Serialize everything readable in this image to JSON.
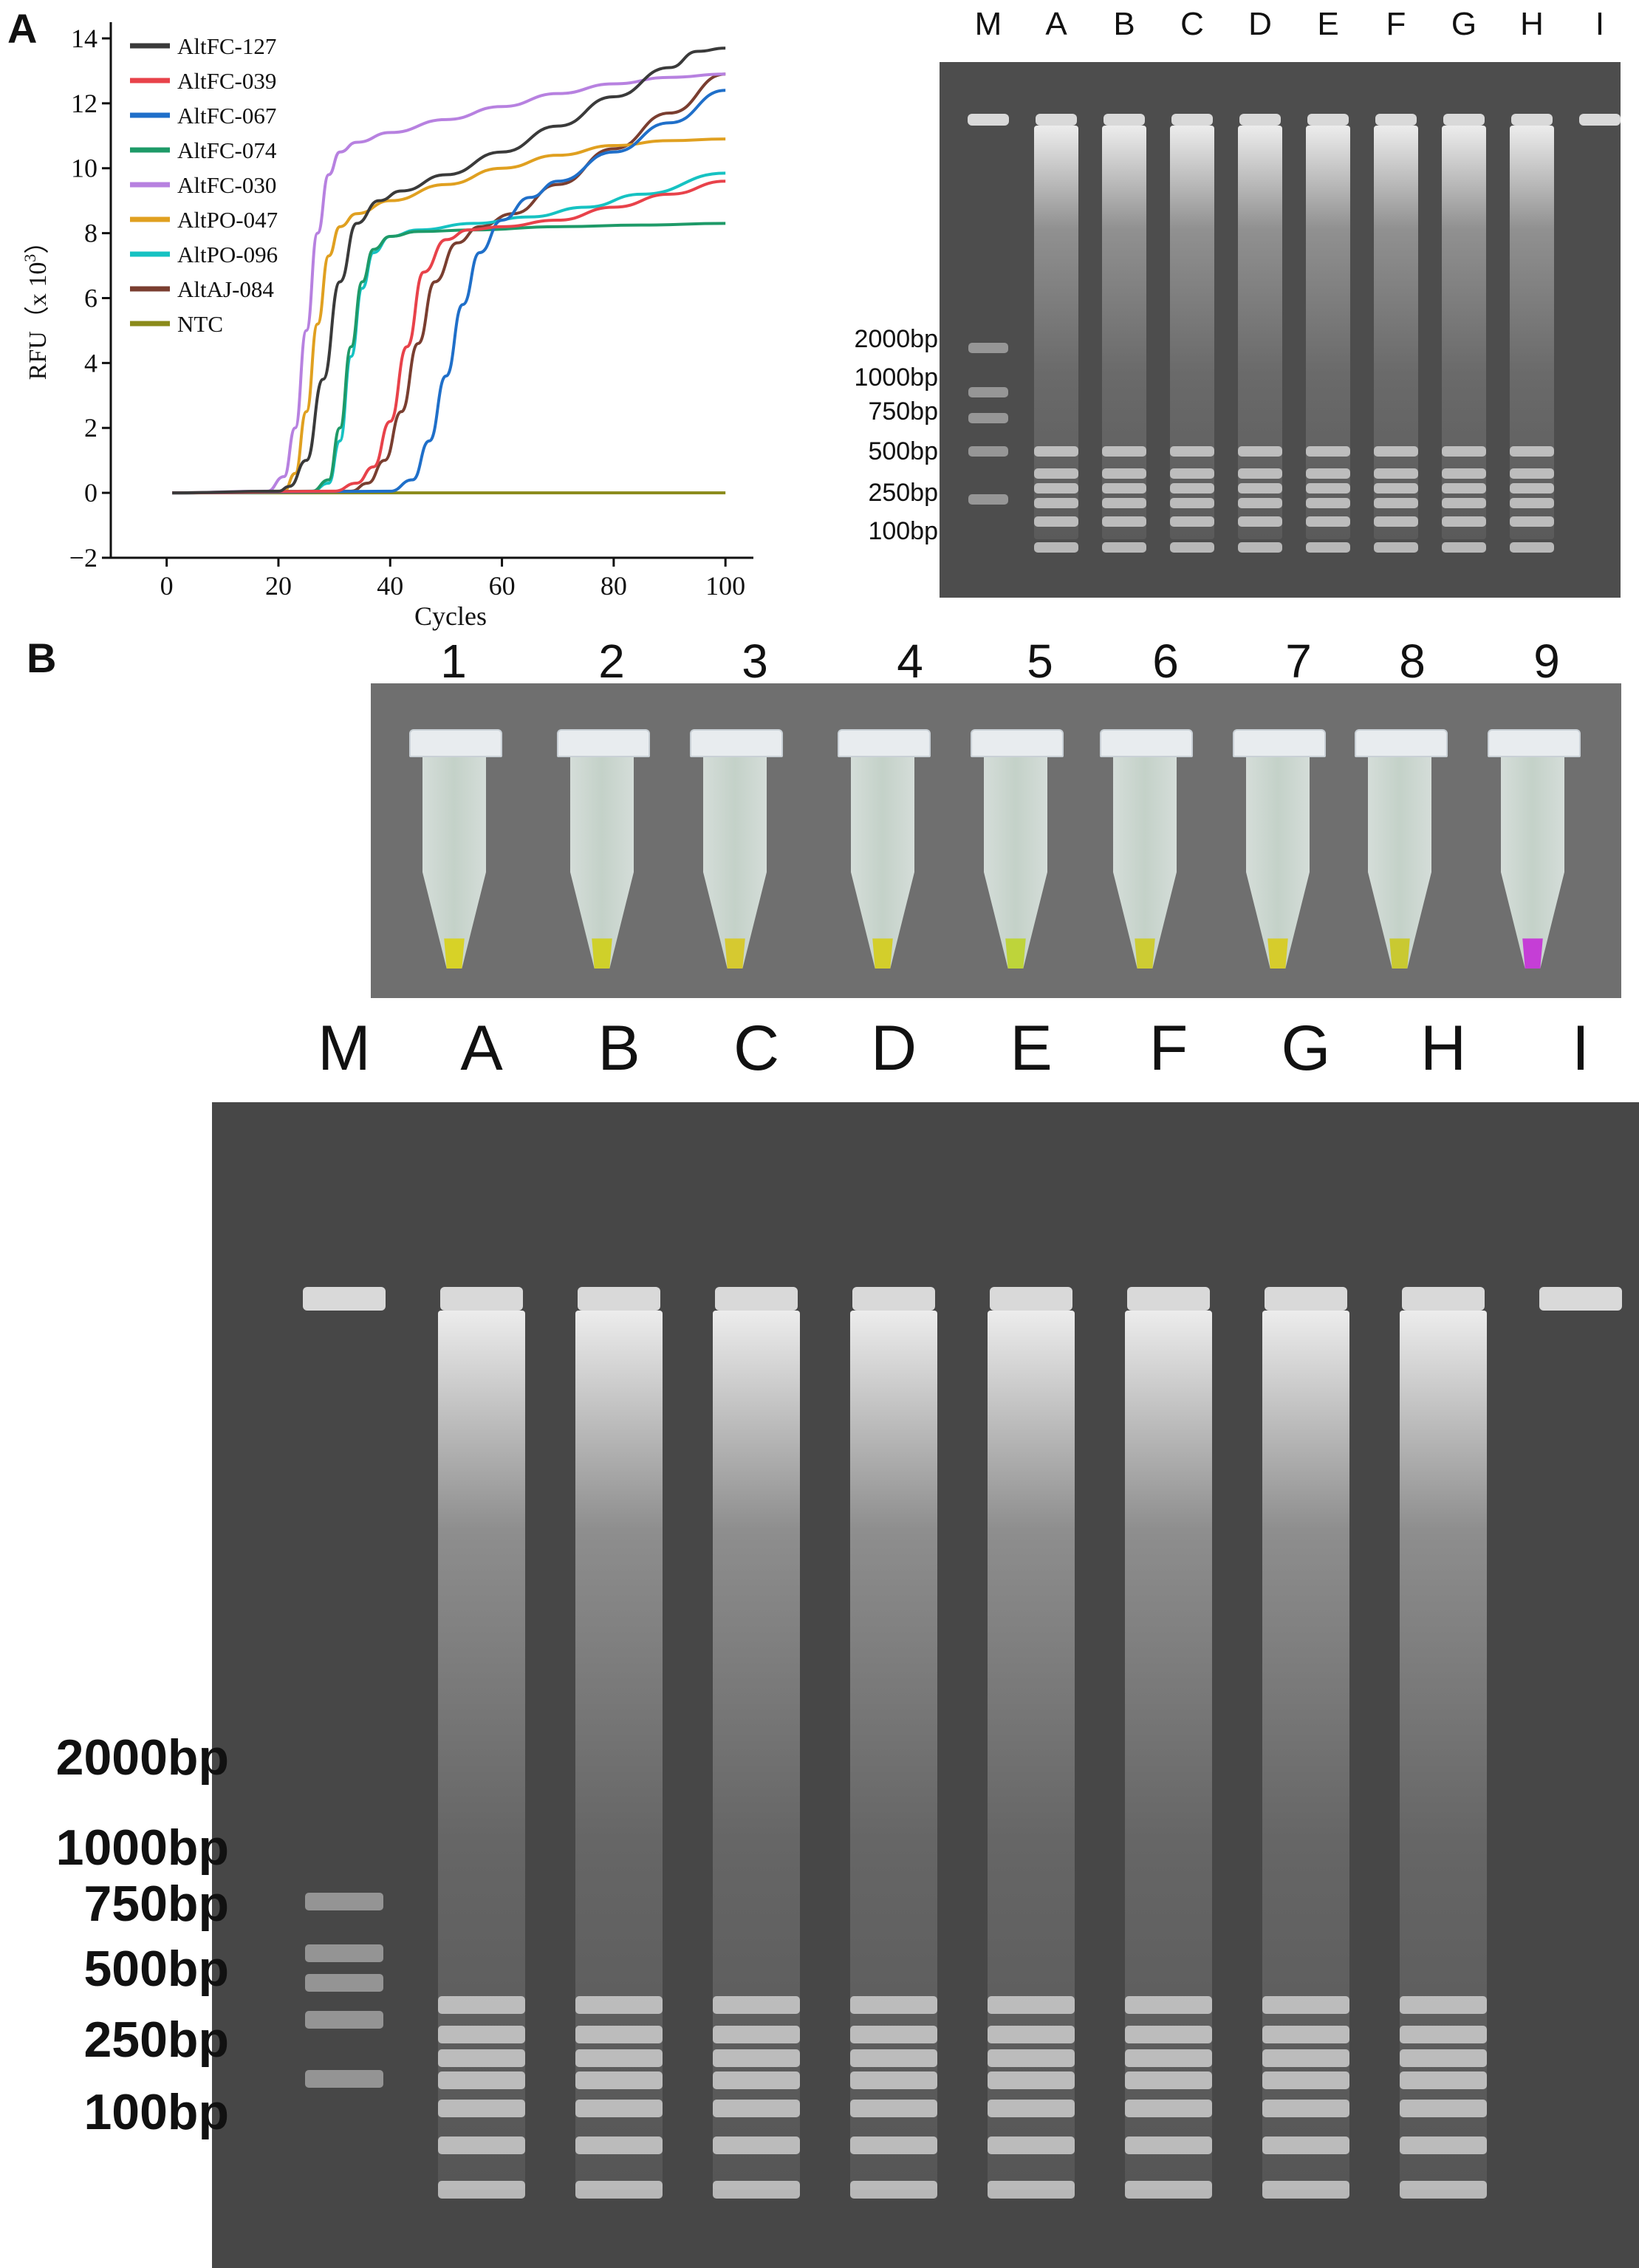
{
  "panel_labels": {
    "a": "A",
    "b": "B"
  },
  "chart_data": {
    "type": "line",
    "xlabel": "Cycles",
    "ylabel": "RFU（x 10",
    "ylabel_sup": "3",
    "ylabel_end": "）",
    "xlim": [
      -10,
      105
    ],
    "ylim": [
      -2,
      14.5
    ],
    "xticks": [
      0,
      20,
      40,
      60,
      80,
      100
    ],
    "yticks": [
      -2,
      0,
      2,
      4,
      6,
      8,
      10,
      12,
      14
    ],
    "legend_position": "top-left",
    "series": [
      {
        "name": "AltFC-127",
        "color": "#3a3a3a",
        "x": [
          1,
          20,
          22,
          25,
          28,
          31,
          34,
          38,
          42,
          50,
          60,
          70,
          80,
          90,
          95,
          100
        ],
        "y": [
          0,
          0.05,
          0.2,
          1,
          3.5,
          6.5,
          8.3,
          9,
          9.3,
          9.8,
          10.5,
          11.3,
          12.2,
          13.1,
          13.6,
          13.7
        ]
      },
      {
        "name": "AltFC-039",
        "color": "#e8424a",
        "x": [
          1,
          30,
          34,
          37,
          40,
          43,
          46,
          50,
          54,
          60,
          70,
          80,
          90,
          100
        ],
        "y": [
          0,
          0.05,
          0.3,
          0.8,
          2.2,
          4.5,
          6.8,
          7.8,
          8.1,
          8.2,
          8.4,
          8.8,
          9.2,
          9.6
        ]
      },
      {
        "name": "AltFC-067",
        "color": "#1f6fc9",
        "x": [
          1,
          40,
          44,
          47,
          50,
          53,
          56,
          60,
          65,
          70,
          80,
          90,
          100
        ],
        "y": [
          0,
          0.05,
          0.4,
          1.6,
          3.6,
          5.8,
          7.4,
          8.4,
          9.1,
          9.6,
          10.5,
          11.4,
          12.4
        ]
      },
      {
        "name": "AltFC-074",
        "color": "#1e9a68",
        "x": [
          1,
          26,
          29,
          31,
          33,
          35,
          37,
          40,
          45,
          55,
          70,
          85,
          100
        ],
        "y": [
          0,
          0.05,
          0.4,
          2,
          4.5,
          6.5,
          7.5,
          7.9,
          8.05,
          8.1,
          8.2,
          8.25,
          8.3
        ]
      },
      {
        "name": "AltFC-030",
        "color": "#b781e0",
        "x": [
          1,
          18,
          21,
          23,
          25,
          27,
          29,
          31,
          34,
          40,
          50,
          60,
          70,
          80,
          90,
          100
        ],
        "y": [
          0,
          0.05,
          0.5,
          2,
          5,
          8,
          9.8,
          10.5,
          10.8,
          11.1,
          11.5,
          11.9,
          12.3,
          12.6,
          12.8,
          12.9
        ]
      },
      {
        "name": "AltPO-047",
        "color": "#e0a020",
        "x": [
          1,
          21,
          23,
          25,
          27,
          29,
          31,
          34,
          40,
          50,
          60,
          70,
          80,
          90,
          100
        ],
        "y": [
          0,
          0.05,
          0.6,
          2.5,
          5.2,
          7.3,
          8.2,
          8.6,
          9,
          9.5,
          10,
          10.4,
          10.7,
          10.85,
          10.9
        ]
      },
      {
        "name": "AltPO-096",
        "color": "#16c2c2",
        "x": [
          1,
          26,
          29,
          31,
          33,
          35,
          37,
          40,
          45,
          55,
          65,
          75,
          85,
          100
        ],
        "y": [
          0,
          0.05,
          0.3,
          1.6,
          4.2,
          6.3,
          7.4,
          7.9,
          8.1,
          8.3,
          8.5,
          8.8,
          9.2,
          9.85
        ]
      },
      {
        "name": "AltAJ-084",
        "color": "#7a3e30",
        "x": [
          1,
          33,
          36,
          39,
          42,
          45,
          48,
          52,
          56,
          62,
          70,
          80,
          90,
          100
        ],
        "y": [
          0,
          0.05,
          0.3,
          1,
          2.5,
          4.6,
          6.5,
          7.7,
          8.2,
          8.6,
          9.5,
          10.6,
          11.7,
          12.9
        ]
      },
      {
        "name": "NTC",
        "color": "#8a8a1a",
        "x": [
          1,
          100
        ],
        "y": [
          0,
          0
        ]
      }
    ]
  },
  "gel_top": {
    "lanes": [
      "M",
      "A",
      "B",
      "C",
      "D",
      "E",
      "F",
      "G",
      "H",
      "I"
    ],
    "markers": [
      "2000bp",
      "1000bp",
      "750bp",
      "500bp",
      "250bp",
      "100bp"
    ]
  },
  "tubes": {
    "numbers": [
      "1",
      "2",
      "3",
      "4",
      "5",
      "6",
      "7",
      "8",
      "9"
    ],
    "liquid_colors": [
      "#d7d227",
      "#cfd02a",
      "#d6c930",
      "#d3ce2b",
      "#bed43a",
      "#cdcc33",
      "#d6cc2c",
      "#c9c931",
      "#c53ed6"
    ]
  },
  "gel_bottom": {
    "lanes": [
      "M",
      "A",
      "B",
      "C",
      "D",
      "E",
      "F",
      "G",
      "H",
      "I"
    ],
    "markers": [
      "2000bp",
      "1000bp",
      "750bp",
      "500bp",
      "250bp",
      "100bp"
    ]
  }
}
